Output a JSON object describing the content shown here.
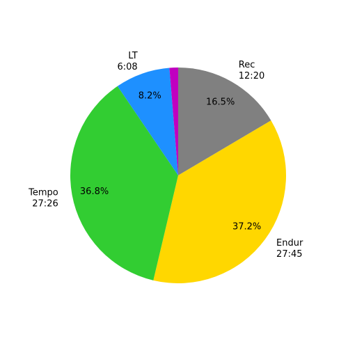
{
  "chart_data": {
    "type": "pie",
    "categories": [
      "Rec",
      "Endur",
      "Tempo",
      "LT",
      null
    ],
    "times": [
      "12:20",
      "27:45",
      "27:26",
      "6:08",
      null
    ],
    "values": [
      16.5,
      37.2,
      36.8,
      8.2,
      1.3
    ],
    "value_labels": [
      "16.5%",
      "37.2%",
      "36.8%",
      "8.2%",
      null
    ],
    "colors": [
      "#808080",
      "#ffd700",
      "#32cd32",
      "#1e90ff",
      "#c000c0"
    ]
  }
}
